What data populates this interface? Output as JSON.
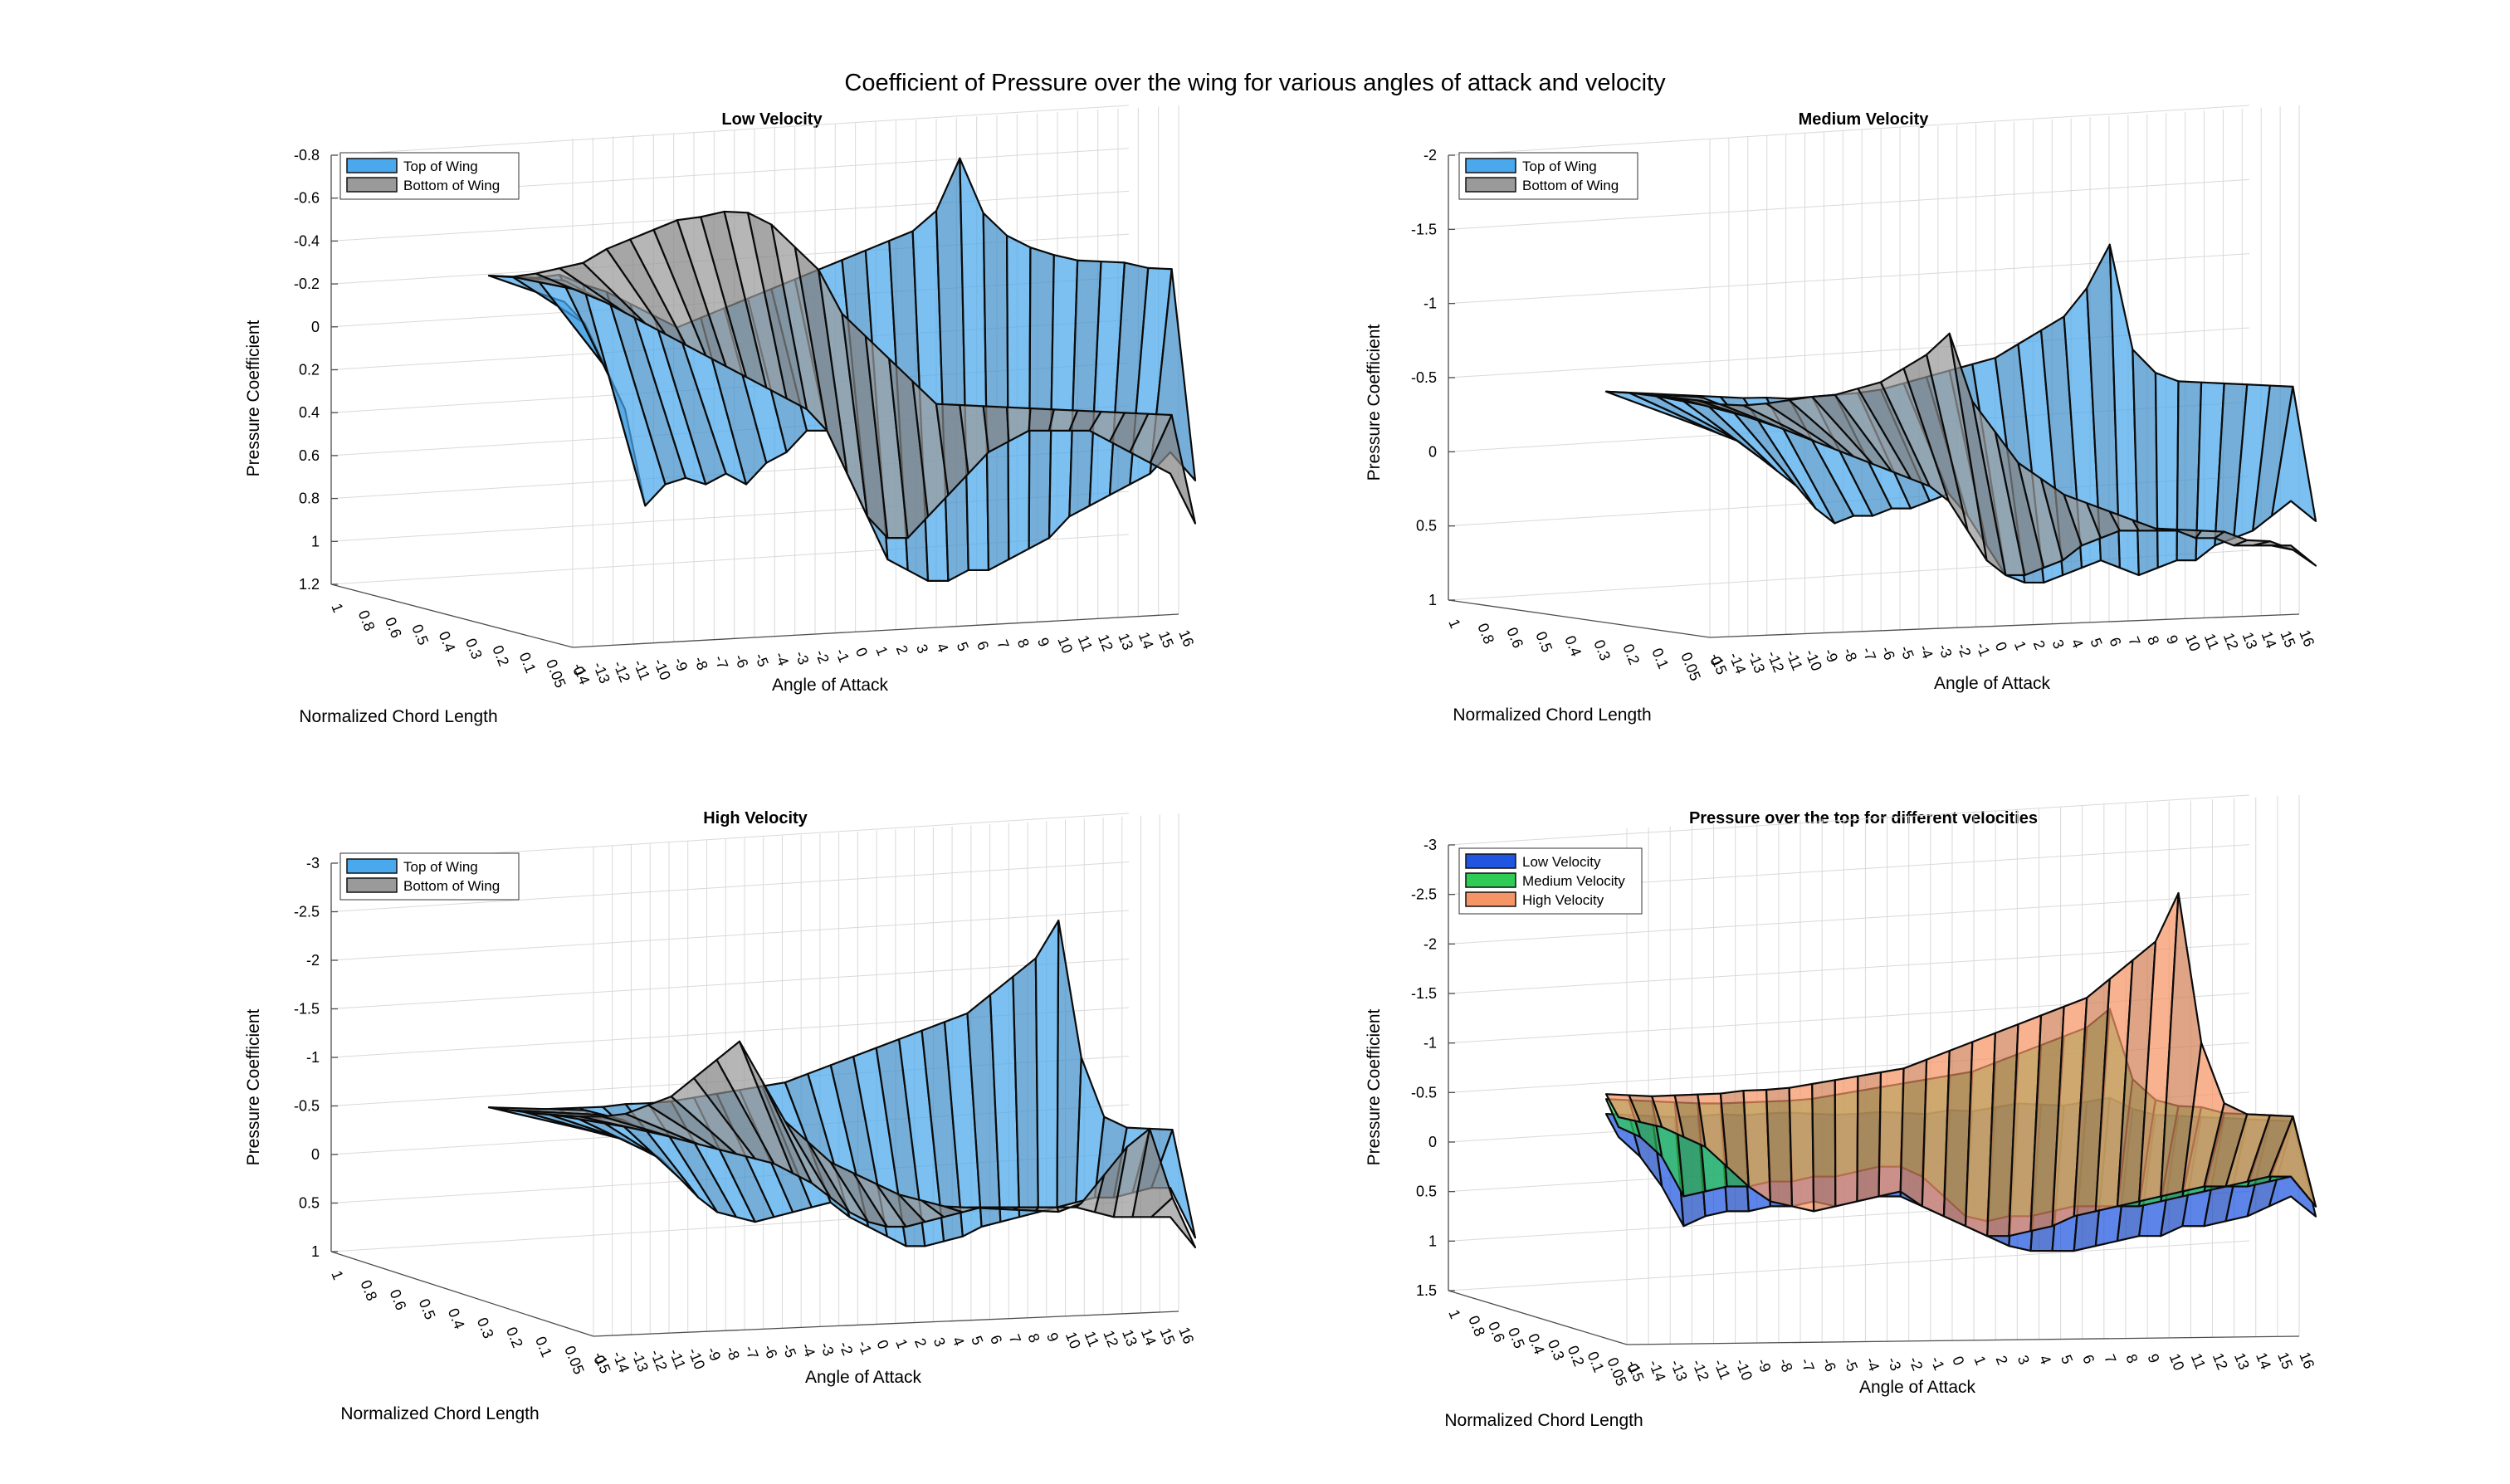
{
  "figure": {
    "title": "Coefficient of Pressure over the wing for various angles of attack and velocity"
  },
  "chart_data": [
    {
      "type": "surface",
      "title": "Low Velocity",
      "xlabel": "Angle of Attack",
      "ylabel": "Normalized Chord Length",
      "zlabel": "Pressure Coefficient",
      "x_ticks": [
        "-14",
        "-13",
        "-12",
        "-11",
        "-10",
        "-9",
        "-8",
        "-7",
        "-6",
        "-5",
        "-4",
        "-3",
        "-2",
        "-1",
        "0",
        "1",
        "2",
        "3",
        "4",
        "5",
        "6",
        "7",
        "8",
        "9",
        "10",
        "11",
        "12",
        "13",
        "14",
        "15",
        "16"
      ],
      "y_ticks": [
        "1",
        "0.8",
        "0.6",
        "0.5",
        "0.4",
        "0.3",
        "0.2",
        "0.1",
        "0.05",
        "0"
      ],
      "z_ticks": [
        "-0.8",
        "-0.6",
        "-0.4",
        "-0.2",
        "0",
        "0.2",
        "0.4",
        "0.6",
        "0.8",
        "1",
        "1.2"
      ],
      "zlim": [
        -0.8,
        1.2
      ],
      "z_reversed": true,
      "legend": {
        "placement": "top-left",
        "entries": [
          "Top of Wing",
          "Bottom of Wing"
        ]
      },
      "series": [
        {
          "name": "Top of Wing",
          "color": "#4aa8ec",
          "le_values": [
            -0.2,
            -0.2,
            -0.2,
            -0.22,
            -0.18,
            -0.15,
            -0.1,
            -0.05,
            0.0,
            -0.05,
            -0.1,
            -0.15,
            -0.2,
            -0.25,
            -0.3,
            -0.35,
            -0.4,
            -0.45,
            -0.5,
            -0.6,
            -0.85,
            -0.6,
            -0.5,
            -0.45,
            -0.42,
            -0.4,
            -0.4,
            -0.4,
            -0.38,
            -0.38,
            0.6
          ],
          "te_values": [
            0.0,
            0.1,
            0.3,
            0.5,
            0.95,
            0.85,
            0.82,
            0.85,
            0.8,
            0.85,
            0.75,
            0.7,
            0.6,
            0.6,
            0.8,
            1.0,
            1.2,
            1.25,
            1.3,
            1.3,
            1.25,
            1.25,
            1.2,
            1.15,
            1.1,
            1.0,
            0.95,
            0.9,
            0.85,
            0.8,
            0.7
          ]
        },
        {
          "name": "Bottom of Wing",
          "color": "#9a9a9a",
          "le_values": [
            -0.2,
            -0.2,
            -0.22,
            -0.25,
            -0.28,
            -0.35,
            -0.4,
            -0.45,
            -0.5,
            -0.52,
            -0.55,
            -0.55,
            -0.5,
            -0.4,
            -0.3,
            -0.1,
            0.0,
            0.1,
            0.2,
            0.3,
            0.3,
            0.3,
            0.3,
            0.3,
            0.3,
            0.3,
            0.3,
            0.3,
            0.3,
            0.3,
            0.8
          ],
          "te_values": [
            -0.1,
            -0.05,
            0.0,
            0.05,
            0.1,
            0.15,
            0.2,
            0.25,
            0.3,
            0.35,
            0.4,
            0.45,
            0.5,
            0.6,
            0.8,
            1.0,
            1.1,
            1.1,
            1.0,
            0.9,
            0.8,
            0.7,
            0.65,
            0.6,
            0.6,
            0.6,
            0.6,
            0.65,
            0.7,
            0.75,
            0.8
          ]
        }
      ]
    },
    {
      "type": "surface",
      "title": "Medium Velocity",
      "xlabel": "Angle of Attack",
      "ylabel": "Normalized Chord Length",
      "zlabel": "Pressure Coefficient",
      "x_ticks": [
        "-15",
        "-14",
        "-13",
        "-12",
        "-11",
        "-10",
        "-9",
        "-8",
        "-7",
        "-6",
        "-5",
        "-4",
        "-3",
        "-2",
        "-1",
        "0",
        "1",
        "2",
        "3",
        "4",
        "5",
        "6",
        "7",
        "8",
        "9",
        "10",
        "11",
        "12",
        "13",
        "14",
        "15",
        "16"
      ],
      "y_ticks": [
        "1",
        "0.8",
        "0.6",
        "0.5",
        "0.4",
        "0.3",
        "0.2",
        "0.1",
        "0.05",
        "0"
      ],
      "z_ticks": [
        "-2",
        "-1.5",
        "-1",
        "-0.5",
        "0",
        "0.5",
        "1"
      ],
      "zlim": [
        -2,
        1
      ],
      "z_reversed": true,
      "legend": {
        "placement": "top-left",
        "entries": [
          "Top of Wing",
          "Bottom of Wing"
        ]
      },
      "series": [
        {
          "name": "Top of Wing",
          "color": "#4aa8ec",
          "le_values": [
            -0.35,
            -0.35,
            -0.35,
            -0.35,
            -0.35,
            -0.35,
            -0.35,
            -0.36,
            -0.36,
            -0.38,
            -0.4,
            -0.42,
            -0.45,
            -0.5,
            -0.55,
            -0.6,
            -0.65,
            -0.7,
            -0.8,
            -0.9,
            -1.0,
            -1.2,
            -1.5,
            -0.8,
            -0.65,
            -0.6,
            -0.6,
            -0.6,
            -0.6,
            -0.6,
            -0.6,
            0.3
          ],
          "te_values": [
            0.0,
            0.05,
            0.1,
            0.2,
            0.3,
            0.4,
            0.55,
            0.65,
            0.6,
            0.6,
            0.55,
            0.55,
            0.5,
            0.45,
            0.6,
            0.8,
            1.0,
            1.05,
            1.05,
            1.0,
            0.95,
            0.9,
            0.95,
            1.0,
            0.95,
            0.9,
            0.9,
            0.8,
            0.75,
            0.7,
            0.6,
            0.5
          ]
        },
        {
          "name": "Bottom of Wing",
          "color": "#9a9a9a",
          "le_values": [
            -0.35,
            -0.35,
            -0.34,
            -0.33,
            -0.32,
            -0.3,
            -0.3,
            -0.32,
            -0.35,
            -0.38,
            -0.4,
            -0.45,
            -0.5,
            -0.6,
            -0.7,
            -0.85,
            -0.4,
            -0.2,
            0.0,
            0.1,
            0.2,
            0.25,
            0.3,
            0.35,
            0.4,
            0.4,
            0.4,
            0.4,
            0.45,
            0.45,
            0.5,
            0.6
          ],
          "te_values": [
            -0.2,
            -0.15,
            -0.1,
            -0.05,
            0.0,
            0.05,
            0.1,
            0.15,
            0.2,
            0.25,
            0.3,
            0.35,
            0.4,
            0.5,
            0.7,
            0.9,
            1.0,
            1.0,
            0.95,
            0.9,
            0.8,
            0.75,
            0.7,
            0.7,
            0.7,
            0.7,
            0.75,
            0.75,
            0.8,
            0.8,
            0.8,
            0.8
          ]
        }
      ]
    },
    {
      "type": "surface",
      "title": "High Velocity",
      "xlabel": "Angle of Attack",
      "ylabel": "Normalized Chord Length",
      "zlabel": "Pressure Coefficient",
      "x_ticks": [
        "-15",
        "-14",
        "-13",
        "-12",
        "-11",
        "-10",
        "-9",
        "-8",
        "-7",
        "-6",
        "-5",
        "-4",
        "-3",
        "-2",
        "-1",
        "0",
        "1",
        "2",
        "3",
        "4",
        "5",
        "6",
        "7",
        "8",
        "9",
        "10",
        "11",
        "12",
        "13",
        "14",
        "15",
        "16"
      ],
      "y_ticks": [
        "1",
        "0.8",
        "0.6",
        "0.5",
        "0.4",
        "0.3",
        "0.2",
        "0.1",
        "0.05",
        "0"
      ],
      "z_ticks": [
        "-3",
        "-2.5",
        "-2",
        "-1.5",
        "-1",
        "-0.5",
        "0",
        "0.5",
        "1"
      ],
      "zlim": [
        -3,
        1
      ],
      "z_reversed": true,
      "legend": {
        "placement": "top-left",
        "entries": [
          "Top of Wing",
          "Bottom of Wing"
        ]
      },
      "series": [
        {
          "name": "Top of Wing",
          "color": "#4aa8ec",
          "le_values": [
            -0.4,
            -0.4,
            -0.4,
            -0.42,
            -0.44,
            -0.46,
            -0.5,
            -0.52,
            -0.55,
            -0.6,
            -0.65,
            -0.7,
            -0.75,
            -0.8,
            -0.9,
            -1.0,
            -1.1,
            -1.2,
            -1.3,
            -1.4,
            -1.5,
            -1.6,
            -1.8,
            -2.0,
            -2.2,
            -2.6,
            -1.2,
            -0.6,
            -0.5,
            -0.5,
            -0.5,
            0.6
          ],
          "te_values": [
            0.0,
            0.05,
            0.1,
            0.2,
            0.3,
            0.5,
            0.7,
            0.85,
            0.9,
            0.95,
            0.9,
            0.85,
            0.8,
            0.75,
            0.9,
            1.0,
            1.1,
            1.2,
            1.2,
            1.15,
            1.1,
            1.0,
            0.95,
            0.9,
            0.85,
            0.8,
            0.75,
            0.7,
            0.7,
            0.65,
            0.6,
            0.6
          ]
        },
        {
          "name": "Bottom of Wing",
          "color": "#9a9a9a",
          "le_values": [
            -0.4,
            -0.38,
            -0.36,
            -0.35,
            -0.35,
            -0.36,
            -0.4,
            -0.5,
            -0.6,
            -0.8,
            -1.0,
            -1.2,
            -0.8,
            -0.4,
            -0.2,
            0.0,
            0.1,
            0.2,
            0.3,
            0.35,
            0.4,
            0.4,
            0.4,
            0.4,
            0.4,
            0.4,
            0.3,
            0.0,
            -0.3,
            -0.5,
            0.2,
            0.7
          ],
          "te_values": [
            -0.2,
            -0.15,
            -0.1,
            0.0,
            0.05,
            0.1,
            0.15,
            0.2,
            0.25,
            0.3,
            0.35,
            0.45,
            0.55,
            0.7,
            0.85,
            0.95,
            1.0,
            1.0,
            0.95,
            0.9,
            0.85,
            0.8,
            0.8,
            0.8,
            0.8,
            0.8,
            0.8,
            0.85,
            0.9,
            0.9,
            0.9,
            0.9
          ]
        }
      ]
    },
    {
      "type": "surface",
      "title": "Pressure over the top for different velocities",
      "xlabel": "Angle of Attack",
      "ylabel": "Normalized Chord Length",
      "zlabel": "Pressure Coefficient",
      "x_ticks": [
        "-15",
        "-14",
        "-13",
        "-12",
        "-11",
        "-10",
        "-9",
        "-8",
        "-7",
        "-6",
        "-5",
        "-4",
        "-3",
        "-2",
        "-1",
        "0",
        "1",
        "2",
        "3",
        "4",
        "5",
        "6",
        "7",
        "8",
        "9",
        "10",
        "11",
        "12",
        "13",
        "14",
        "15",
        "16"
      ],
      "y_ticks": [
        "1",
        "0.8",
        "0.6",
        "0.5",
        "0.4",
        "0.3",
        "0.2",
        "0.1",
        "0.05",
        "0"
      ],
      "z_ticks": [
        "-3",
        "-2.5",
        "-2",
        "-1.5",
        "-1",
        "-0.5",
        "0",
        "0.5",
        "1",
        "1.5"
      ],
      "zlim": [
        -3,
        1.5
      ],
      "z_reversed": true,
      "legend": {
        "placement": "top-left",
        "entries": [
          "Low Velocity",
          "Medium Velocity",
          "High Velocity"
        ]
      },
      "series": [
        {
          "name": "Low Velocity",
          "color": "#1f55e0",
          "le_values": [
            -0.2,
            -0.2,
            -0.2,
            -0.2,
            -0.22,
            -0.25,
            -0.25,
            -0.28,
            -0.3,
            -0.3,
            -0.3,
            -0.32,
            -0.35,
            -0.35,
            -0.35,
            -0.4,
            -0.4,
            -0.45,
            -0.5,
            -0.5,
            -0.5,
            -0.55,
            -0.6,
            -0.5,
            -0.45,
            -0.45,
            -0.45,
            -0.45,
            -0.45,
            -0.45,
            -0.45,
            0.5
          ],
          "te_values": [
            0.2,
            0.4,
            0.7,
            1.1,
            1.0,
            0.95,
            0.95,
            0.9,
            0.9,
            0.85,
            0.9,
            0.85,
            0.8,
            0.8,
            0.9,
            1.0,
            1.1,
            1.2,
            1.3,
            1.35,
            1.35,
            1.35,
            1.3,
            1.25,
            1.2,
            1.2,
            1.1,
            1.1,
            1.05,
            1.0,
            0.9,
            0.8
          ]
        },
        {
          "name": "Medium Velocity",
          "color": "#2ecc55",
          "le_values": [
            -0.35,
            -0.35,
            -0.35,
            -0.35,
            -0.35,
            -0.36,
            -0.38,
            -0.4,
            -0.42,
            -0.45,
            -0.5,
            -0.55,
            -0.6,
            -0.65,
            -0.7,
            -0.75,
            -0.8,
            -0.9,
            -1.0,
            -1.1,
            -1.2,
            -1.3,
            -1.5,
            -0.8,
            -0.6,
            -0.55,
            -0.55,
            -0.5,
            -0.5,
            -0.5,
            -0.5,
            0.4
          ],
          "te_values": [
            0.1,
            0.2,
            0.4,
            0.8,
            0.75,
            0.7,
            0.7,
            0.65,
            0.65,
            0.6,
            0.6,
            0.55,
            0.5,
            0.5,
            0.6,
            0.8,
            1.0,
            1.05,
            1.0,
            1.0,
            0.95,
            0.9,
            0.9,
            0.9,
            0.9,
            0.85,
            0.8,
            0.75,
            0.7,
            0.7,
            0.65,
            0.6
          ]
        },
        {
          "name": "High Velocity",
          "color": "#f59465",
          "le_values": [
            -0.4,
            -0.4,
            -0.4,
            -0.42,
            -0.44,
            -0.46,
            -0.5,
            -0.52,
            -0.55,
            -0.6,
            -0.65,
            -0.7,
            -0.75,
            -0.8,
            -0.9,
            -1.0,
            -1.1,
            -1.2,
            -1.3,
            -1.4,
            -1.5,
            -1.6,
            -1.8,
            -2.0,
            -2.2,
            -2.7,
            -1.2,
            -0.6,
            -0.5,
            -0.5,
            -0.5,
            0.4
          ],
          "te_values": [
            0.0,
            0.05,
            0.1,
            0.2,
            0.3,
            0.5,
            0.7,
            0.85,
            0.9,
            0.95,
            0.9,
            0.85,
            0.8,
            0.75,
            0.9,
            1.0,
            1.1,
            1.2,
            1.2,
            1.15,
            1.1,
            1.0,
            0.95,
            0.9,
            0.85,
            0.8,
            0.75,
            0.7,
            0.7,
            0.65,
            0.6,
            0.6
          ]
        }
      ]
    }
  ]
}
